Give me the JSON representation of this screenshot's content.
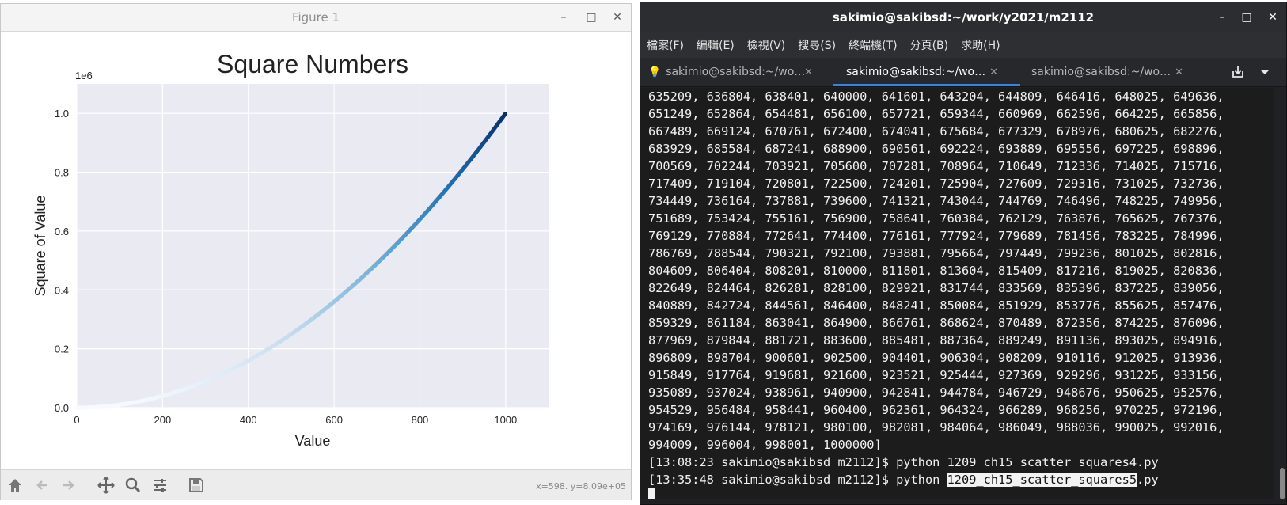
{
  "figure_window": {
    "title": "Figure 1",
    "controls": {
      "minimize": "–",
      "maximize": "□",
      "close": "✕"
    },
    "coords_readout": "x=598. y=8.09e+05",
    "toolbar_icons": [
      "home-icon",
      "back-arrow-icon",
      "forward-arrow-icon",
      "pan-icon",
      "zoom-icon",
      "configure-subplots-icon",
      "save-icon"
    ]
  },
  "chart_data": {
    "type": "scatter",
    "title": "Square Numbers",
    "xlabel": "Value",
    "ylabel": "Square of Value",
    "offset_text": "1e6",
    "x_range": [
      1,
      1000
    ],
    "function": "y = x^2",
    "xlim": [
      0,
      1100
    ],
    "ylim": [
      0,
      1100000
    ],
    "x_ticks": [
      0,
      200,
      400,
      600,
      800,
      1000
    ],
    "x_tick_labels": [
      "0",
      "200",
      "400",
      "600",
      "800",
      "1000"
    ],
    "y_ticks": [
      0,
      200000,
      400000,
      600000,
      800000,
      1000000
    ],
    "y_tick_labels": [
      "0.0",
      "0.2",
      "0.4",
      "0.6",
      "0.8",
      "1.0"
    ],
    "colormap": "Blues",
    "grid": true,
    "background": "#eaeaf2"
  },
  "terminal_window": {
    "title": "sakimio@sakibsd:~/work/y2021/m2112",
    "controls": {
      "minimize": "–",
      "maximize": "□",
      "close": "✕"
    },
    "menu": [
      "檔案(F)",
      "編輯(E)",
      "檢視(V)",
      "搜尋(S)",
      "終端機(T)",
      "分頁(B)",
      "求助(H)"
    ],
    "tabs": [
      {
        "label": "sakimio@sakibsd:~/wo…",
        "active": false
      },
      {
        "label": "sakimio@sakibsd:~/wo…",
        "active": true
      },
      {
        "label": "sakimio@sakibsd:~/wo…",
        "active": false
      }
    ],
    "lines": [
      "635209, 636804, 638401, 640000, 641601, 643204, 644809, 646416, 648025, 649636,",
      "651249, 652864, 654481, 656100, 657721, 659344, 660969, 662596, 664225, 665856,",
      "667489, 669124, 670761, 672400, 674041, 675684, 677329, 678976, 680625, 682276,",
      "683929, 685584, 687241, 688900, 690561, 692224, 693889, 695556, 697225, 698896,",
      "700569, 702244, 703921, 705600, 707281, 708964, 710649, 712336, 714025, 715716,",
      "717409, 719104, 720801, 722500, 724201, 725904, 727609, 729316, 731025, 732736,",
      "734449, 736164, 737881, 739600, 741321, 743044, 744769, 746496, 748225, 749956,",
      "751689, 753424, 755161, 756900, 758641, 760384, 762129, 763876, 765625, 767376,",
      "769129, 770884, 772641, 774400, 776161, 777924, 779689, 781456, 783225, 784996,",
      "786769, 788544, 790321, 792100, 793881, 795664, 797449, 799236, 801025, 802816,",
      "804609, 806404, 808201, 810000, 811801, 813604, 815409, 817216, 819025, 820836,",
      "822649, 824464, 826281, 828100, 829921, 831744, 833569, 835396, 837225, 839056,",
      "840889, 842724, 844561, 846400, 848241, 850084, 851929, 853776, 855625, 857476,",
      "859329, 861184, 863041, 864900, 866761, 868624, 870489, 872356, 874225, 876096,",
      "877969, 879844, 881721, 883600, 885481, 887364, 889249, 891136, 893025, 894916,",
      "896809, 898704, 900601, 902500, 904401, 906304, 908209, 910116, 912025, 913936,",
      "915849, 917764, 919681, 921600, 923521, 925444, 927369, 929296, 931225, 933156,",
      "935089, 937024, 938961, 940900, 942841, 944784, 946729, 948676, 950625, 952576,",
      "954529, 956484, 958441, 960400, 962361, 964324, 966289, 968256, 970225, 972196,",
      "974169, 976144, 978121, 980100, 982081, 984064, 986049, 988036, 990025, 992016,",
      "994009, 996004, 998001, 1000000]"
    ],
    "prompt1": {
      "prefix": "[13:08:23 sakimio@sakibsd m2112]$ python ",
      "file": "1209_ch15_scatter_squares4.py"
    },
    "prompt2": {
      "prefix": "[13:35:48 sakimio@sakibsd m2112]$ python ",
      "file_highlighted": "1209_ch15_scatter_squares5",
      "file_rest": ".py"
    }
  }
}
